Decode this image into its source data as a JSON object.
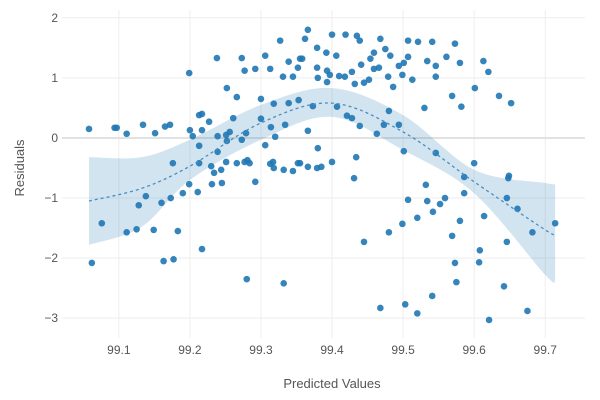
{
  "chart_data": {
    "type": "scatter",
    "title": "",
    "xlabel": "Predicted Values",
    "ylabel": "Residuals",
    "xlim": [
      99.02,
      99.756
    ],
    "ylim": [
      -3.33,
      2.13
    ],
    "xticks": [
      99.1,
      99.2,
      99.3,
      99.4,
      99.5,
      99.6,
      99.7
    ],
    "xtick_labels": [
      "99.1",
      "99.2",
      "99.3",
      "99.4",
      "99.5",
      "99.6",
      "99.7"
    ],
    "yticks": [
      2,
      1,
      0,
      -1,
      -2,
      -3
    ],
    "ytick_labels": [
      "2",
      "1",
      "0",
      "−1",
      "−2",
      "−3"
    ],
    "grid": true,
    "colors": {
      "points": "#1f77b4",
      "band": "#1f77b4",
      "fit_line": "#4a8cc2",
      "grid": "#eeeeee",
      "zero_line": "#d9d9d9"
    },
    "points": [
      [
        99.058,
        0.15
      ],
      [
        99.062,
        -2.08
      ],
      [
        99.076,
        -1.42
      ],
      [
        99.094,
        0.17
      ],
      [
        99.097,
        0.17
      ],
      [
        99.111,
        0.07
      ],
      [
        99.111,
        -1.57
      ],
      [
        99.125,
        -1.52
      ],
      [
        99.128,
        -1.12
      ],
      [
        99.134,
        0.22
      ],
      [
        99.138,
        -0.97
      ],
      [
        99.149,
        -1.53
      ],
      [
        99.151,
        0.08
      ],
      [
        99.16,
        -1.08
      ],
      [
        99.163,
        -2.05
      ],
      [
        99.165,
        0.19
      ],
      [
        99.172,
        0.22
      ],
      [
        99.173,
        -1.0
      ],
      [
        99.176,
        -0.42
      ],
      [
        99.177,
        -2.02
      ],
      [
        99.183,
        -1.55
      ],
      [
        99.19,
        -0.92
      ],
      [
        99.199,
        1.08
      ],
      [
        99.199,
        -0.77
      ],
      [
        99.2,
        0.13
      ],
      [
        99.204,
        0.03
      ],
      [
        99.211,
        -0.9
      ],
      [
        99.213,
        0.38
      ],
      [
        99.217,
        0.4
      ],
      [
        99.213,
        -0.13
      ],
      [
        99.213,
        -0.42
      ],
      [
        99.217,
        -1.85
      ],
      [
        99.217,
        0.13
      ],
      [
        99.227,
        0.27
      ],
      [
        99.23,
        -0.47
      ],
      [
        99.231,
        -0.77
      ],
      [
        99.234,
        -0.58
      ],
      [
        99.238,
        1.33
      ],
      [
        99.239,
        0.03
      ],
      [
        99.239,
        -0.23
      ],
      [
        99.244,
        -0.53
      ],
      [
        99.245,
        -0.75
      ],
      [
        99.251,
        0.05
      ],
      [
        99.252,
        0.83
      ],
      [
        99.252,
        -0.05
      ],
      [
        99.251,
        -0.4
      ],
      [
        99.256,
        0.1
      ],
      [
        99.261,
        0.33
      ],
      [
        99.266,
        0.68
      ],
      [
        99.266,
        -0.42
      ],
      [
        99.273,
        -0.03
      ],
      [
        99.273,
        1.33
      ],
      [
        99.277,
        1.12
      ],
      [
        99.277,
        -0.4
      ],
      [
        99.281,
        -0.37
      ],
      [
        99.284,
        -0.42
      ],
      [
        99.279,
        0.08
      ],
      [
        99.28,
        -2.35
      ],
      [
        99.292,
        1.15
      ],
      [
        99.292,
        -0.73
      ],
      [
        99.3,
        0.65
      ],
      [
        99.3,
        0.32
      ],
      [
        99.306,
        1.37
      ],
      [
        99.306,
        -0.12
      ],
      [
        99.313,
        1.15
      ],
      [
        99.313,
        -0.43
      ],
      [
        99.314,
        0.18
      ],
      [
        99.317,
        -0.4
      ],
      [
        99.318,
        -0.5
      ],
      [
        99.318,
        0.57
      ],
      [
        99.32,
        0.02
      ],
      [
        99.327,
        1.62
      ],
      [
        99.331,
        1.02
      ],
      [
        99.332,
        -0.53
      ],
      [
        99.332,
        -2.42
      ],
      [
        99.334,
        0.22
      ],
      [
        99.339,
        1.27
      ],
      [
        99.339,
        0.58
      ],
      [
        99.345,
        1.02
      ],
      [
        99.345,
        -0.55
      ],
      [
        99.352,
        1.17
      ],
      [
        99.352,
        -0.42
      ],
      [
        99.353,
        0.63
      ],
      [
        99.355,
        1.32
      ],
      [
        99.362,
        1.65
      ],
      [
        99.366,
        1.8
      ],
      [
        99.358,
        1.32
      ],
      [
        99.366,
        0.12
      ],
      [
        99.366,
        -0.48
      ],
      [
        99.379,
        -0.5
      ],
      [
        99.385,
        -0.48
      ],
      [
        99.355,
        -0.42
      ],
      [
        99.373,
        0.53
      ],
      [
        99.379,
        1.5
      ],
      [
        99.379,
        1.17
      ],
      [
        99.38,
        1.0
      ],
      [
        99.38,
        -0.17
      ],
      [
        99.392,
        1.42
      ],
      [
        99.393,
        1.12
      ],
      [
        99.393,
        0.93
      ],
      [
        99.397,
        1.05
      ],
      [
        99.4,
        1.72
      ],
      [
        99.4,
        -0.4
      ],
      [
        99.406,
        1.37
      ],
      [
        99.407,
        0.52
      ],
      [
        99.41,
        1.03
      ],
      [
        99.418,
        1.02
      ],
      [
        99.419,
        1.72
      ],
      [
        99.421,
        0.37
      ],
      [
        99.428,
        0.33
      ],
      [
        99.428,
        1.1
      ],
      [
        99.431,
        -0.67
      ],
      [
        99.432,
        0.9
      ],
      [
        99.434,
        -0.32
      ],
      [
        99.435,
        1.7
      ],
      [
        99.439,
        1.62
      ],
      [
        99.439,
        0.2
      ],
      [
        99.441,
        1.22
      ],
      [
        99.445,
        -1.73
      ],
      [
        99.445,
        0.92
      ],
      [
        99.452,
        0.97
      ],
      [
        99.454,
        1.32
      ],
      [
        99.459,
        1.42
      ],
      [
        99.459,
        1.15
      ],
      [
        99.463,
        0.07
      ],
      [
        99.468,
        1.65
      ],
      [
        99.466,
        1.17
      ],
      [
        99.468,
        -2.83
      ],
      [
        99.473,
        0.22
      ],
      [
        99.475,
        1.48
      ],
      [
        99.479,
        1.02
      ],
      [
        99.48,
        0.45
      ],
      [
        99.48,
        -1.57
      ],
      [
        99.482,
        1.37
      ],
      [
        99.486,
        0.85
      ],
      [
        99.494,
        1.2
      ],
      [
        99.494,
        0.22
      ],
      [
        99.499,
        -1.43
      ],
      [
        99.499,
        1.05
      ],
      [
        99.501,
        1.25
      ],
      [
        99.501,
        -0.22
      ],
      [
        99.503,
        -2.77
      ],
      [
        99.507,
        1.62
      ],
      [
        99.507,
        1.35
      ],
      [
        99.507,
        -1.03
      ],
      [
        99.513,
        0.97
      ],
      [
        99.52,
        -1.33
      ],
      [
        99.52,
        -2.92
      ],
      [
        99.521,
        1.6
      ],
      [
        99.53,
        0.5
      ],
      [
        99.532,
        -0.78
      ],
      [
        99.534,
        -1.05
      ],
      [
        99.534,
        1.28
      ],
      [
        99.541,
        1.6
      ],
      [
        99.541,
        -2.63
      ],
      [
        99.542,
        -1.23
      ],
      [
        99.546,
        1.2
      ],
      [
        99.546,
        1.02
      ],
      [
        99.546,
        -0.25
      ],
      [
        99.552,
        -1.1
      ],
      [
        99.559,
        -1.0
      ],
      [
        99.561,
        1.35
      ],
      [
        99.569,
        0.7
      ],
      [
        99.569,
        -1.63
      ],
      [
        99.573,
        1.57
      ],
      [
        99.573,
        -2.08
      ],
      [
        99.575,
        -2.4
      ],
      [
        99.58,
        1.25
      ],
      [
        99.58,
        -1.38
      ],
      [
        99.582,
        0.52
      ],
      [
        99.586,
        -0.65
      ],
      [
        99.586,
        -0.92
      ],
      [
        99.6,
        -0.42
      ],
      [
        99.601,
        0.83
      ],
      [
        99.607,
        -2.07
      ],
      [
        99.608,
        -1.87
      ],
      [
        99.613,
        1.28
      ],
      [
        99.614,
        -1.3
      ],
      [
        99.62,
        1.1
      ],
      [
        99.621,
        -3.03
      ],
      [
        99.635,
        0.7
      ],
      [
        99.642,
        -2.47
      ],
      [
        99.646,
        -1.0
      ],
      [
        99.646,
        -1.73
      ],
      [
        99.649,
        -0.63
      ],
      [
        99.648,
        -0.67
      ],
      [
        99.652,
        0.58
      ],
      [
        99.661,
        -1.18
      ],
      [
        99.675,
        -2.88
      ],
      [
        99.682,
        -1.57
      ],
      [
        99.714,
        -1.42
      ]
    ],
    "fit": {
      "style": "dashed",
      "x": [
        99.058,
        99.132,
        99.2,
        99.3,
        99.4,
        99.5,
        99.6,
        99.7,
        99.714
      ],
      "y": [
        -1.05,
        -0.84,
        -0.47,
        0.25,
        0.58,
        0.1,
        -0.73,
        -1.53,
        -1.6
      ],
      "lower": [
        -1.78,
        -1.48,
        -0.7,
        -0.03,
        0.35,
        -0.2,
        -0.92,
        -2.28,
        -2.37
      ],
      "upper": [
        -0.32,
        -0.32,
        -0.03,
        0.55,
        0.83,
        0.38,
        -0.53,
        -0.75,
        -0.77
      ]
    }
  }
}
